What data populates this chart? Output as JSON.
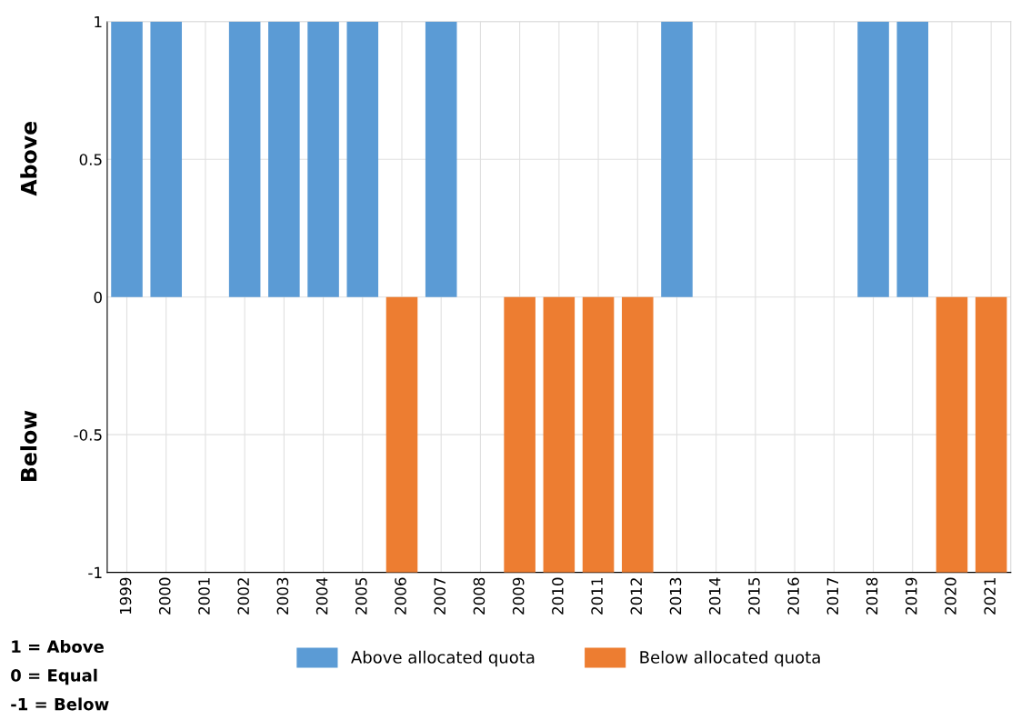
{
  "chart_data": {
    "type": "bar",
    "categories": [
      "1999",
      "2000",
      "2001",
      "2002",
      "2003",
      "2004",
      "2005",
      "2006",
      "2007",
      "2008",
      "2009",
      "2010",
      "2011",
      "2012",
      "2013",
      "2014",
      "2015",
      "2016",
      "2017",
      "2018",
      "2019",
      "2020",
      "2021"
    ],
    "series": [
      {
        "name": "Above allocated quota",
        "color": "#5b9bd5",
        "values": [
          1,
          1,
          0,
          1,
          1,
          1,
          1,
          null,
          1,
          0,
          null,
          null,
          null,
          null,
          1,
          0,
          0,
          0,
          0,
          1,
          1,
          null,
          null
        ]
      },
      {
        "name": "Below allocated quota",
        "color": "#ed7d31",
        "values": [
          null,
          null,
          0,
          null,
          null,
          null,
          null,
          -1,
          null,
          0,
          -1,
          -1,
          -1,
          -1,
          null,
          0,
          0,
          0,
          0,
          null,
          null,
          -1,
          -1
        ]
      }
    ],
    "ylim": [
      -1,
      1
    ],
    "yticks": [
      -1,
      -0.5,
      0,
      0.5,
      1
    ],
    "grid": true,
    "legend": "bottom",
    "annotations": [
      "Above",
      "Below",
      "1 = Above",
      "0 = Equal",
      "-1 = Below"
    ]
  }
}
